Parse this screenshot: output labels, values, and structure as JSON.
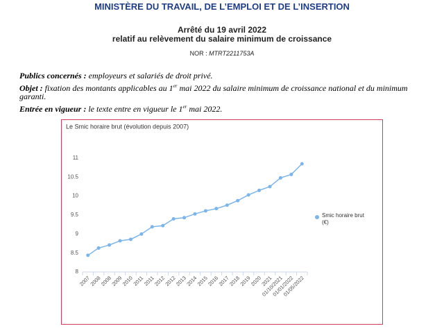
{
  "header": {
    "ministry": "MINISTÈRE DU TRAVAIL, DE L’EMPLOI ET DE L’INSERTION",
    "title": "Arrêté du 19 avril 2022",
    "subtitle": "relatif au relèvement du salaire minimum de croissance",
    "nor_label": "NOR :",
    "nor": "MTRT2211753A"
  },
  "body": [
    {
      "label": "Publics concernés :",
      "text": "employeurs et salariés de droit privé."
    },
    {
      "label": "Objet :",
      "text": "fixation des montants applicables au 1",
      "sup": "er",
      "text_end": "mai 2022 du salaire minimum de croissance national et du minimum garanti."
    },
    {
      "label": "Entrée en vigueur :",
      "text": "le texte entre en vigueur le 1",
      "sup": "er",
      "text_end": "mai 2022."
    }
  ],
  "chart_data": {
    "type": "line",
    "title": "Le Smic horaire brut (évolution depuis 2007)",
    "categories": [
      "2007",
      "2008",
      "2008",
      "2009",
      "2010",
      "2011",
      "2011",
      "2012",
      "2012",
      "2013",
      "2014",
      "2015",
      "2016",
      "2017",
      "2018",
      "2019",
      "2020",
      "2021",
      "01/10/2021",
      "01/01/2022",
      "01/05/2022"
    ],
    "series": [
      {
        "name": "Smic horaire brut (€)",
        "color": "#7cb5ec",
        "values": [
          8.44,
          8.63,
          8.71,
          8.82,
          8.86,
          9.0,
          9.19,
          9.22,
          9.4,
          9.43,
          9.53,
          9.61,
          9.67,
          9.76,
          9.88,
          10.03,
          10.15,
          10.25,
          10.48,
          10.57,
          10.85
        ]
      }
    ],
    "ylim": [
      8,
      11.2
    ],
    "yticks": [
      8,
      8.5,
      9,
      9.5,
      10,
      10.5,
      11
    ],
    "grid": false,
    "legend": "right"
  }
}
